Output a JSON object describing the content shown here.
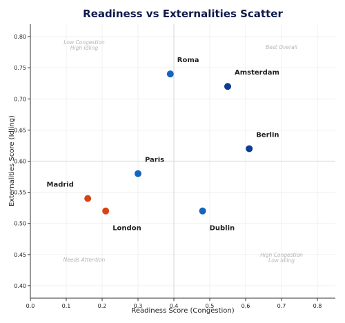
{
  "chart_data": {
    "type": "scatter",
    "title": "Readiness vs Externalities Scatter",
    "xlabel": "Readiness Score (Congestion)",
    "ylabel": "Externalities Score (Idling)",
    "xlim": [
      0.0,
      0.85
    ],
    "ylim": [
      0.38,
      0.82
    ],
    "xticks": [
      0.0,
      0.1,
      0.2,
      0.3,
      0.4,
      0.5,
      0.6,
      0.7,
      0.8
    ],
    "xtick_labels": [
      "0.0",
      "0.1",
      "0.2",
      "0.3",
      "0.4",
      "0.5",
      "0.6",
      "0.7",
      "0.8"
    ],
    "yticks": [
      0.4,
      0.45,
      0.5,
      0.55,
      0.6,
      0.65,
      0.7,
      0.75,
      0.8
    ],
    "ytick_labels": [
      "0.40",
      "0.45",
      "0.50",
      "0.55",
      "0.60",
      "0.65",
      "0.70",
      "0.75",
      "0.80"
    ],
    "grid": true,
    "reference_lines": {
      "x": 0.4,
      "y": 0.6
    },
    "points": [
      {
        "label": "Roma",
        "x": 0.39,
        "y": 0.74,
        "color": "#1565c0",
        "label_pos": "upper-right"
      },
      {
        "label": "Amsterdam",
        "x": 0.55,
        "y": 0.72,
        "color": "#0d3c91",
        "label_pos": "upper-right"
      },
      {
        "label": "Berlin",
        "x": 0.61,
        "y": 0.62,
        "color": "#0d3c91",
        "label_pos": "upper-right"
      },
      {
        "label": "Paris",
        "x": 0.3,
        "y": 0.58,
        "color": "#1565c0",
        "label_pos": "upper-right"
      },
      {
        "label": "Madrid",
        "x": 0.16,
        "y": 0.54,
        "color": "#d84315",
        "label_pos": "upper-left"
      },
      {
        "label": "London",
        "x": 0.21,
        "y": 0.52,
        "color": "#d84315",
        "label_pos": "lower-right"
      },
      {
        "label": "Dublin",
        "x": 0.48,
        "y": 0.52,
        "color": "#1565c0",
        "label_pos": "lower-right"
      }
    ],
    "annotations": [
      {
        "lines": [
          "Low Congestion",
          "High Idling"
        ],
        "position": "top-left"
      },
      {
        "lines": [
          "Best Overall"
        ],
        "position": "top-right"
      },
      {
        "lines": [
          "Needs Attention"
        ],
        "position": "bottom-left"
      },
      {
        "lines": [
          "High Congestion",
          "Low Idling"
        ],
        "position": "bottom-right"
      }
    ],
    "colors": {
      "title": "#0d1b4c",
      "text": "#222222",
      "annotation": "#b5b5b5",
      "grid": "#ececec",
      "reference_line": "#dddddd"
    }
  }
}
